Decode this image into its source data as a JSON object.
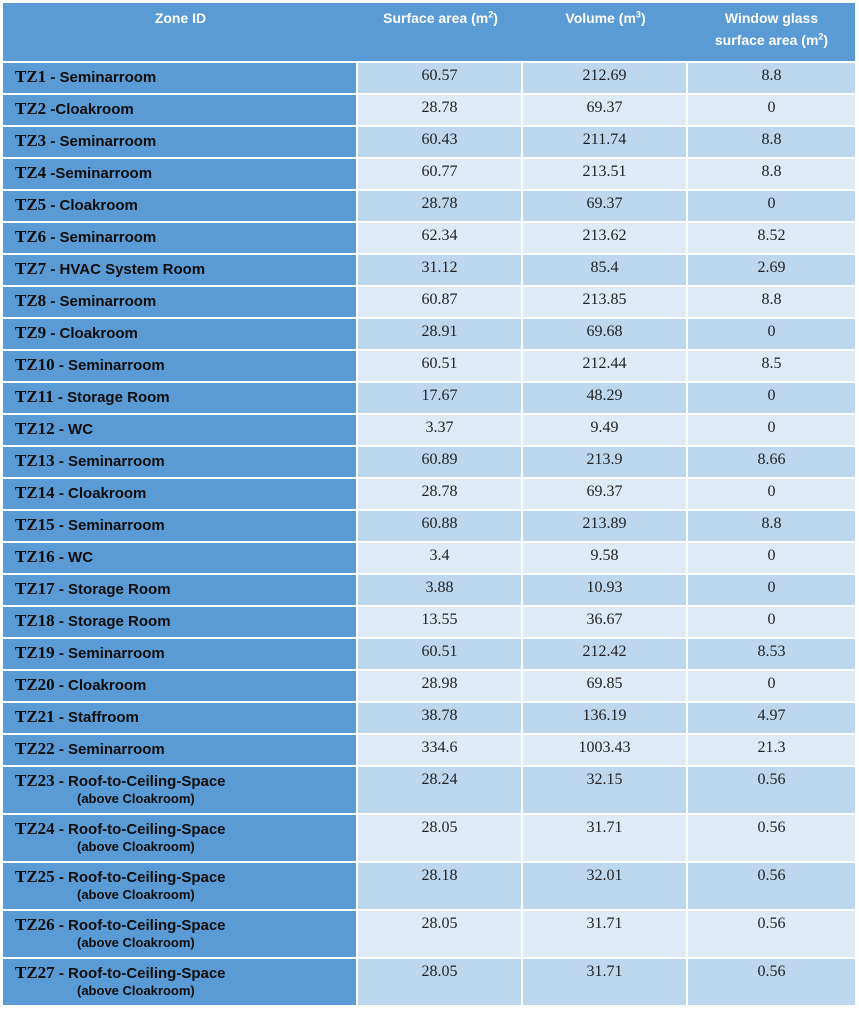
{
  "table": {
    "headers": {
      "zone_id": "Zone ID",
      "surface_area": "Surface area (m",
      "volume": "Volume (m",
      "window_line1": "Window glass",
      "window_line2": "surface area (m",
      "sup_2": "2",
      "sup_3": "3",
      "close": ")"
    },
    "rows": [
      {
        "id": "TZ1",
        "sep": " - ",
        "name": "Seminarroom",
        "sub": "",
        "surface": "60.57",
        "volume": "212.69",
        "window": "8.8"
      },
      {
        "id": "TZ2",
        "sep": " -",
        "name": "Cloakroom",
        "sub": "",
        "surface": "28.78",
        "volume": "69.37",
        "window": "0"
      },
      {
        "id": "TZ3",
        "sep": " - ",
        "name": "Seminarroom",
        "sub": "",
        "surface": "60.43",
        "volume": "211.74",
        "window": "8.8"
      },
      {
        "id": "TZ4",
        "sep": " -",
        "name": "Seminarroom",
        "sub": "",
        "surface": "60.77",
        "volume": "213.51",
        "window": "8.8"
      },
      {
        "id": "TZ5",
        "sep": " - ",
        "name": "Cloakroom",
        "sub": "",
        "surface": "28.78",
        "volume": "69.37",
        "window": "0"
      },
      {
        "id": "TZ6",
        "sep": " - ",
        "name": "Seminarroom",
        "sub": "",
        "surface": "62.34",
        "volume": "213.62",
        "window": "8.52"
      },
      {
        "id": "TZ7",
        "sep": " - ",
        "name": "HVAC System Room",
        "sub": "",
        "surface": "31.12",
        "volume": "85.4",
        "window": "2.69"
      },
      {
        "id": "TZ8",
        "sep": " - ",
        "name": "Seminarroom",
        "sub": "",
        "surface": "60.87",
        "volume": "213.85",
        "window": "8.8"
      },
      {
        "id": "TZ9",
        "sep": " - ",
        "name": "Cloakroom",
        "sub": "",
        "surface": "28.91",
        "volume": "69.68",
        "window": "0"
      },
      {
        "id": "TZ10",
        "sep": " - ",
        "name": "Seminarroom",
        "sub": "",
        "surface": "60.51",
        "volume": "212.44",
        "window": "8.5"
      },
      {
        "id": "TZ11",
        "sep": " - ",
        "name": "Storage Room",
        "sub": "",
        "surface": "17.67",
        "volume": "48.29",
        "window": "0"
      },
      {
        "id": "TZ12",
        "sep": " - ",
        "name": "WC",
        "sub": "",
        "surface": "3.37",
        "volume": "9.49",
        "window": "0"
      },
      {
        "id": "TZ13",
        "sep": " - ",
        "name": "Seminarroom",
        "sub": "",
        "surface": "60.89",
        "volume": "213.9",
        "window": "8.66"
      },
      {
        "id": "TZ14",
        "sep": " - ",
        "name": "Cloakroom",
        "sub": "",
        "surface": "28.78",
        "volume": "69.37",
        "window": "0"
      },
      {
        "id": "TZ15",
        "sep": " - ",
        "name": "Seminarroom",
        "sub": "",
        "surface": "60.88",
        "volume": "213.89",
        "window": "8.8"
      },
      {
        "id": "TZ16",
        "sep": " - ",
        "name": "WC",
        "sub": "",
        "surface": "3.4",
        "volume": "9.58",
        "window": "0"
      },
      {
        "id": "TZ17",
        "sep": " - ",
        "name": "Storage Room",
        "sub": "",
        "surface": "3.88",
        "volume": "10.93",
        "window": "0"
      },
      {
        "id": "TZ18",
        "sep": " - ",
        "name": "Storage Room",
        "sub": "",
        "surface": "13.55",
        "volume": "36.67",
        "window": "0"
      },
      {
        "id": "TZ19",
        "sep": " - ",
        "name": "Seminarroom",
        "sub": "",
        "surface": "60.51",
        "volume": "212.42",
        "window": "8.53"
      },
      {
        "id": "TZ20",
        "sep": " - ",
        "name": "Cloakroom",
        "sub": "",
        "surface": "28.98",
        "volume": "69.85",
        "window": "0"
      },
      {
        "id": "TZ21",
        "sep": " - ",
        "name": "Staffroom",
        "sub": "",
        "surface": "38.78",
        "volume": "136.19",
        "window": "4.97"
      },
      {
        "id": "TZ22",
        "sep": " - ",
        "name": "Seminarroom",
        "sub": "",
        "surface": "334.6",
        "volume": "1003.43",
        "window": "21.3"
      },
      {
        "id": "TZ23",
        "sep": " - ",
        "name": "Roof-to-Ceiling-Space",
        "sub": "(above Cloakroom)",
        "surface": "28.24",
        "volume": "32.15",
        "window": "0.56"
      },
      {
        "id": "TZ24",
        "sep": " - ",
        "name": "Roof-to-Ceiling-Space",
        "sub": "(above Cloakroom)",
        "surface": "28.05",
        "volume": "31.71",
        "window": "0.56"
      },
      {
        "id": "TZ25",
        "sep": " - ",
        "name": "Roof-to-Ceiling-Space",
        "sub": "(above Cloakroom)",
        "surface": "28.18",
        "volume": "32.01",
        "window": "0.56"
      },
      {
        "id": "TZ26",
        "sep": " - ",
        "name": "Roof-to-Ceiling-Space",
        "sub": "(above Cloakroom)",
        "surface": "28.05",
        "volume": "31.71",
        "window": "0.56"
      },
      {
        "id": "TZ27",
        "sep": " - ",
        "name": "Roof-to-Ceiling-Space",
        "sub": "(above Cloakroom)",
        "surface": "28.05",
        "volume": "31.71",
        "window": "0.56"
      }
    ]
  },
  "colors": {
    "header_bg": "#5b9bd5",
    "zone_bg": "#5b9bd5",
    "row_dark": "#bdd7ee",
    "row_light": "#deebf7"
  }
}
